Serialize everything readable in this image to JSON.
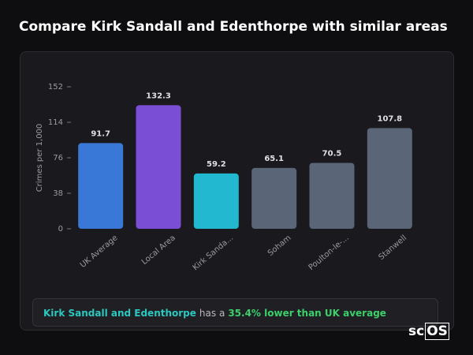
{
  "header": {
    "title": "Compare Kirk Sandall and Edenthorpe with similar areas"
  },
  "chart_data": {
    "type": "bar",
    "y_label": "Crimes per 1,000",
    "categories": [
      "UK Average",
      "Local Area",
      "Kirk Sanda...",
      "Soham",
      "Poulton-le-...",
      "Stanwell"
    ],
    "values": [
      91.7,
      132.3,
      59.2,
      65.1,
      70.5,
      107.8
    ],
    "colors": [
      "#3a78d8",
      "#7a4fd6",
      "#22b8d0",
      "#5b6578",
      "#5b6578",
      "#5b6578"
    ],
    "ylim": [
      0,
      152
    ],
    "yticks": [
      0,
      38,
      76,
      114,
      152
    ],
    "grid": false
  },
  "summary": {
    "area": "Kirk Sandall and Edenthorpe",
    "middle": "has a",
    "highlight": "35.4% lower than UK average"
  },
  "logo": {
    "text": "sc",
    "boxed": "OS"
  }
}
